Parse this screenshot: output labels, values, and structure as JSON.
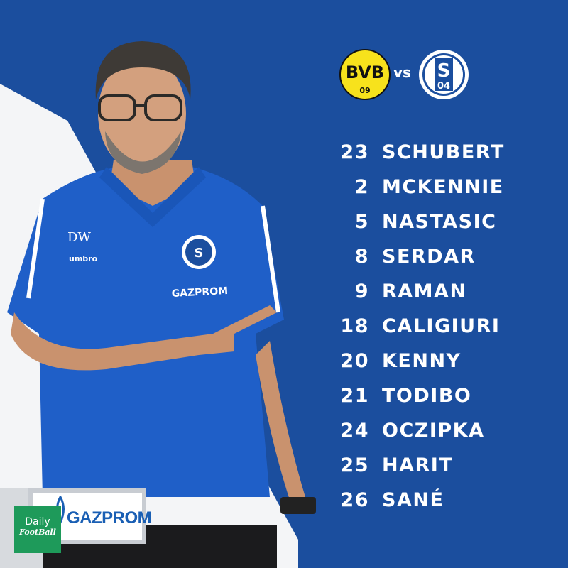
{
  "match": {
    "home_crest": {
      "icon": "bvb-crest-icon",
      "text_top": "BVB",
      "text_bottom": "09",
      "color": "#f7e21c"
    },
    "vs_label": "vs",
    "away_crest": {
      "icon": "schalke-crest-icon",
      "text_top": "S",
      "text_bottom": "04",
      "color": "#1b4e9e"
    }
  },
  "lineup": [
    {
      "number": "23",
      "name": "SCHUBERT"
    },
    {
      "number": "2",
      "name": "MCKENNIE"
    },
    {
      "number": "5",
      "name": "NASTASIC"
    },
    {
      "number": "8",
      "name": "SERDAR"
    },
    {
      "number": "9",
      "name": "RAMAN"
    },
    {
      "number": "18",
      "name": "CALIGIURI"
    },
    {
      "number": "20",
      "name": "KENNY"
    },
    {
      "number": "21",
      "name": "TODIBO"
    },
    {
      "number": "24",
      "name": "OCZIPKA"
    },
    {
      "number": "25",
      "name": "HARIT"
    },
    {
      "number": "26",
      "name": "SANÉ"
    }
  ],
  "coach_shirt": {
    "initials": "DW",
    "kit_brand": "umbro",
    "sponsor": "GAZPROM"
  },
  "sponsor_board": {
    "text": "GAZPROM"
  },
  "watermark": {
    "line1": "Daily",
    "line2": "FootBall",
    "color": "#1e9a5a"
  },
  "colors": {
    "background": "#1b4e9e",
    "shirt": "#1f5fc8",
    "text": "#ffffff"
  }
}
